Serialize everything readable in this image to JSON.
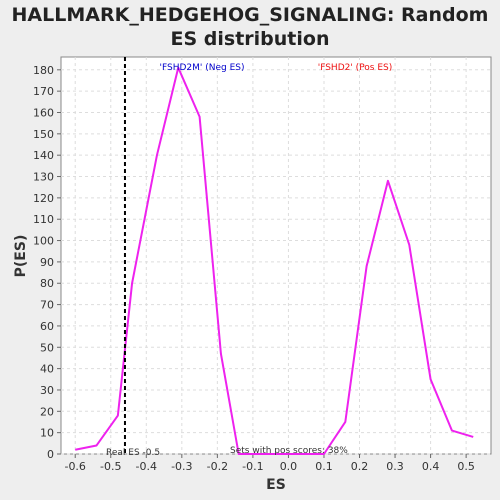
{
  "chart_data": {
    "type": "line",
    "title_lines": [
      "HALLMARK_HEDGEHOG_SIGNALING: Random",
      "ES distribution"
    ],
    "xlabel": "ES",
    "ylabel": "P(ES)",
    "xlim": [
      -0.64,
      0.57
    ],
    "ylim": [
      0,
      186
    ],
    "x_ticks": [
      -0.6,
      -0.5,
      -0.4,
      -0.3,
      -0.2,
      -0.1,
      0.0,
      0.1,
      0.2,
      0.3,
      0.4,
      0.5
    ],
    "x_tick_labels": [
      "-0.6",
      "-0.5",
      "-0.4",
      "-0.3",
      "-0.2",
      "-0.1",
      "0.0",
      "0.1",
      "0.2",
      "0.3",
      "0.4",
      "0.5"
    ],
    "y_ticks": [
      0,
      10,
      20,
      30,
      40,
      50,
      60,
      70,
      80,
      90,
      100,
      110,
      120,
      130,
      140,
      150,
      160,
      170,
      180
    ],
    "y_tick_labels": [
      "0",
      "10",
      "20",
      "30",
      "40",
      "50",
      "60",
      "70",
      "80",
      "90",
      "100",
      "110",
      "120",
      "130",
      "140",
      "150",
      "160",
      "170",
      "180"
    ],
    "grid": true,
    "series": [
      {
        "color": "#ee22ee",
        "x": [
          -0.6,
          -0.54,
          -0.48,
          -0.44,
          -0.37,
          -0.31,
          -0.25,
          -0.19,
          -0.14,
          -0.08,
          -0.02,
          0.04,
          0.1,
          0.16,
          0.22,
          0.28,
          0.34,
          0.4,
          0.46,
          0.52
        ],
        "y": [
          2,
          4,
          18,
          80,
          140,
          181,
          158,
          47,
          0,
          0,
          0,
          0,
          0,
          15,
          88,
          128,
          98,
          35,
          11,
          8
        ]
      }
    ],
    "real_es": {
      "x": -0.46,
      "label": "Real ES -0.5"
    },
    "annotations": {
      "neg_label": "'FSHD2M' (Neg ES)",
      "neg_color": "#0000cc",
      "pos_label": "'FSHD2' (Pos ES)",
      "pos_color": "#ee1111",
      "pos_scores": "Sets with pos scores: 38%"
    }
  }
}
